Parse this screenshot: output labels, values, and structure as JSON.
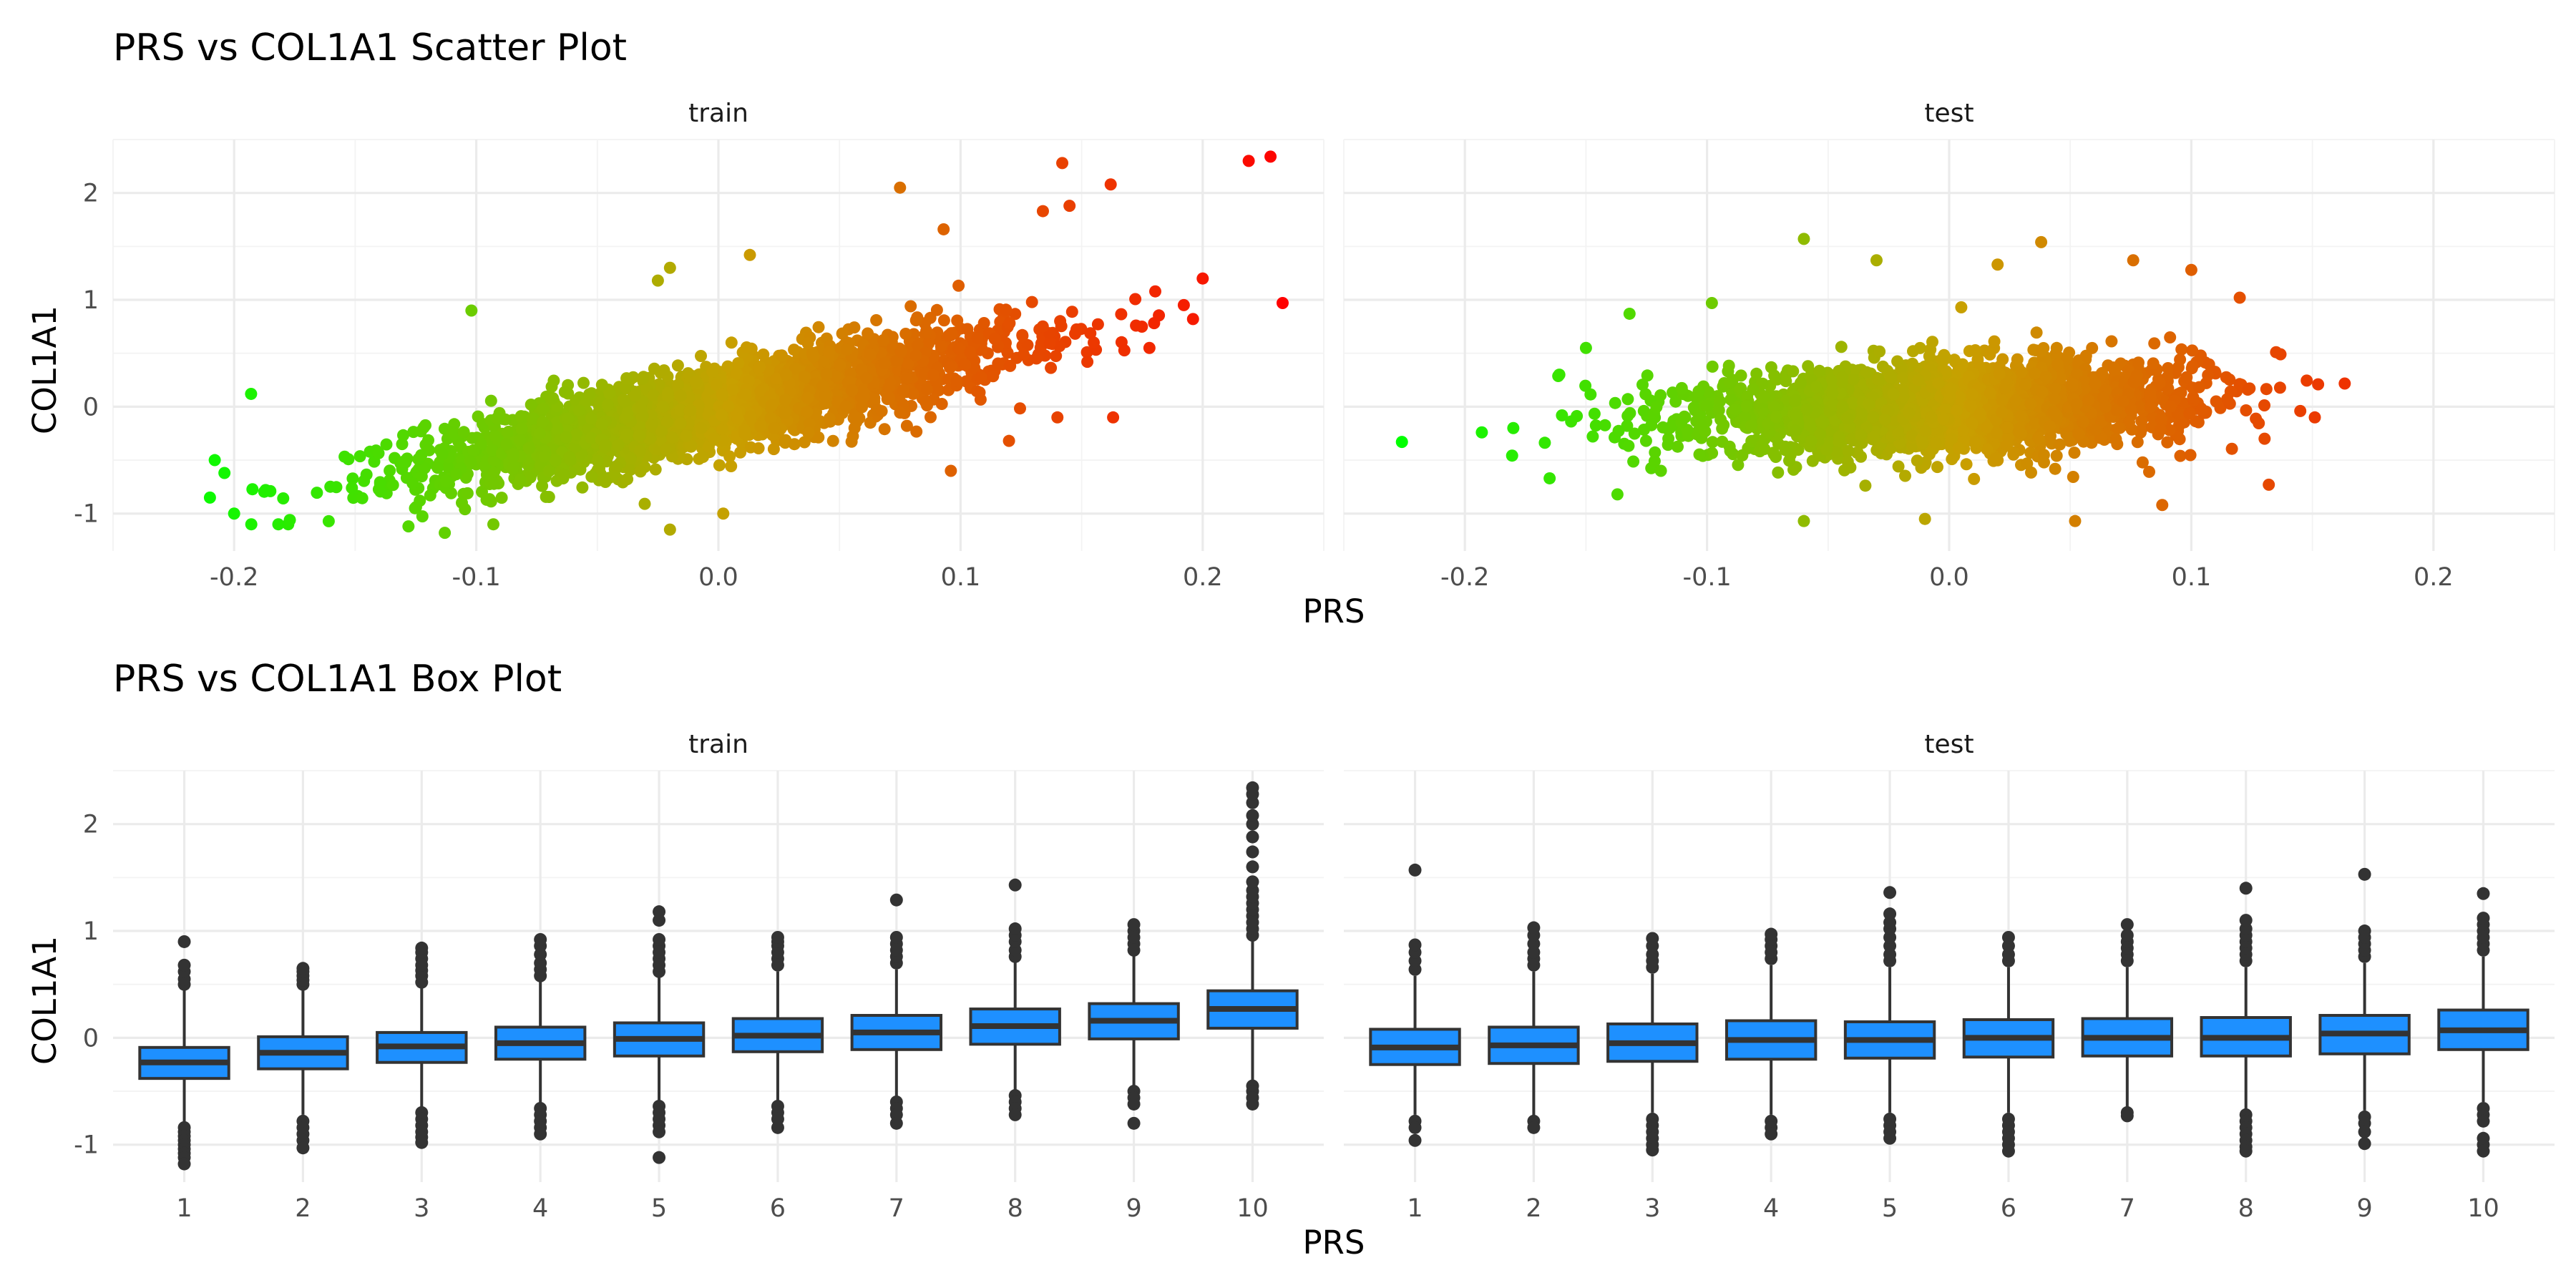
{
  "chart_data": [
    {
      "type": "scatter",
      "title": "PRS vs COL1A1 Scatter Plot",
      "xlabel": "PRS",
      "ylabel": "COL1A1",
      "facets": [
        "train",
        "test"
      ],
      "xlim": [
        -0.25,
        0.25
      ],
      "ylim": [
        -1.35,
        2.5
      ],
      "x_ticks": [
        -0.2,
        -0.1,
        0.0,
        0.1,
        0.2
      ],
      "x_tick_labels": [
        "-0.2",
        "-0.1",
        "0.0",
        "0.1",
        "0.2"
      ],
      "y_ticks": [
        -1,
        0,
        1,
        2
      ],
      "y_tick_labels": [
        "-1",
        "0",
        "1",
        "2"
      ],
      "grid": true,
      "color_scale": {
        "low": "#00ff00",
        "mid": "#c8a000",
        "high": "#ff0000",
        "mapped_to": "PRS"
      },
      "cloud_trend": {
        "train": {
          "x_mean": 0.0,
          "x_sd": 0.06,
          "slope": 4.5,
          "intercept": 0.0,
          "y_sd": 0.2
        },
        "test": {
          "x_mean": 0.0,
          "x_sd": 0.05,
          "slope": 0.9,
          "intercept": 0.0,
          "y_sd": 0.2
        }
      },
      "series": [
        {
          "facet": "train",
          "points": [
            {
              "x": 0.219,
              "y": 2.3
            },
            {
              "x": 0.228,
              "y": 2.34
            },
            {
              "x": 0.233,
              "y": 0.97
            },
            {
              "x": 0.142,
              "y": 2.28
            },
            {
              "x": 0.162,
              "y": 2.08
            },
            {
              "x": 0.075,
              "y": 2.05
            },
            {
              "x": 0.093,
              "y": 1.66
            },
            {
              "x": 0.134,
              "y": 1.83
            },
            {
              "x": 0.196,
              "y": 0.82
            },
            {
              "x": 0.178,
              "y": 0.55
            },
            {
              "x": 0.145,
              "y": 1.88
            },
            {
              "x": -0.208,
              "y": -0.5
            },
            {
              "x": -0.204,
              "y": -0.62
            },
            {
              "x": -0.2,
              "y": -1.0
            },
            {
              "x": -0.193,
              "y": 0.12
            },
            {
              "x": -0.187,
              "y": -0.78
            },
            {
              "x": -0.177,
              "y": -1.06
            },
            {
              "x": -0.113,
              "y": -1.18
            },
            {
              "x": -0.128,
              "y": -1.12
            },
            {
              "x": -0.02,
              "y": -1.15
            },
            {
              "x": -0.102,
              "y": 0.9
            },
            {
              "x": -0.02,
              "y": 1.3
            },
            {
              "x": 0.013,
              "y": 1.42
            },
            {
              "x": -0.025,
              "y": 1.18
            },
            {
              "x": 0.002,
              "y": -1.0
            },
            {
              "x": 0.096,
              "y": -0.6
            },
            {
              "x": 0.12,
              "y": -0.32
            },
            {
              "x": 0.14,
              "y": -0.1
            },
            {
              "x": 0.155,
              "y": 0.6
            },
            {
              "x": 0.163,
              "y": -0.1
            }
          ]
        },
        {
          "facet": "test",
          "points": [
            {
              "x": -0.226,
              "y": -0.33
            },
            {
              "x": -0.193,
              "y": -0.24
            },
            {
              "x": -0.18,
              "y": -0.2
            },
            {
              "x": -0.165,
              "y": -0.67
            },
            {
              "x": -0.161,
              "y": 0.3
            },
            {
              "x": -0.15,
              "y": 0.55
            },
            {
              "x": -0.132,
              "y": 0.87
            },
            {
              "x": -0.06,
              "y": 1.57
            },
            {
              "x": -0.03,
              "y": 1.37
            },
            {
              "x": 0.02,
              "y": 1.33
            },
            {
              "x": 0.038,
              "y": 1.54
            },
            {
              "x": 0.076,
              "y": 1.37
            },
            {
              "x": 0.1,
              "y": 1.28
            },
            {
              "x": 0.12,
              "y": 1.02
            },
            {
              "x": 0.135,
              "y": 0.51
            },
            {
              "x": 0.145,
              "y": -0.04
            },
            {
              "x": 0.151,
              "y": -0.1
            },
            {
              "x": 0.132,
              "y": -0.73
            },
            {
              "x": 0.088,
              "y": -0.92
            },
            {
              "x": 0.052,
              "y": -1.07
            },
            {
              "x": -0.06,
              "y": -1.07
            },
            {
              "x": -0.01,
              "y": -1.05
            },
            {
              "x": -0.137,
              "y": -0.82
            },
            {
              "x": 0.005,
              "y": 0.93
            },
            {
              "x": -0.098,
              "y": 0.97
            }
          ]
        }
      ]
    },
    {
      "type": "box",
      "title": "PRS vs COL1A1 Box Plot",
      "xlabel": "PRS",
      "ylabel": "COL1A1",
      "facets": [
        "train",
        "test"
      ],
      "categories": [
        "1",
        "2",
        "3",
        "4",
        "5",
        "6",
        "7",
        "8",
        "9",
        "10"
      ],
      "ylim": [
        -1.35,
        2.5
      ],
      "y_ticks": [
        -1,
        0,
        1,
        2
      ],
      "y_tick_labels": [
        "-1",
        "0",
        "1",
        "2"
      ],
      "grid": true,
      "box_color": "#1e90ff",
      "outline_color": "#333333",
      "series": [
        {
          "facet": "train",
          "boxes": [
            {
              "category": "1",
              "whisker_low": -0.79,
              "q1": -0.38,
              "median": -0.23,
              "q3": -0.09,
              "whisker_high": 0.45,
              "outliers": [
                -0.84,
                -0.88,
                -0.92,
                -0.96,
                -1.0,
                -1.04,
                -1.08,
                -1.12,
                -1.18,
                0.5,
                0.55,
                0.62,
                0.68,
                0.9
              ]
            },
            {
              "category": "2",
              "whisker_low": -0.72,
              "q1": -0.29,
              "median": -0.14,
              "q3": 0.01,
              "whisker_high": 0.46,
              "outliers": [
                -0.78,
                -0.84,
                -0.9,
                -0.96,
                -1.03,
                0.5,
                0.54,
                0.58,
                0.62,
                0.65
              ]
            },
            {
              "category": "3",
              "whisker_low": -0.66,
              "q1": -0.23,
              "median": -0.08,
              "q3": 0.05,
              "whisker_high": 0.47,
              "outliers": [
                -0.7,
                -0.76,
                -0.82,
                -0.88,
                -0.93,
                -0.98,
                0.52,
                0.58,
                0.63,
                0.68,
                0.74,
                0.8,
                0.84
              ]
            },
            {
              "category": "4",
              "whisker_low": -0.62,
              "q1": -0.2,
              "median": -0.05,
              "q3": 0.1,
              "whisker_high": 0.53,
              "outliers": [
                -0.66,
                -0.72,
                -0.78,
                -0.84,
                -0.9,
                0.58,
                0.64,
                0.7,
                0.78,
                0.86,
                0.92
              ]
            },
            {
              "category": "5",
              "whisker_low": -0.6,
              "q1": -0.17,
              "median": -0.01,
              "q3": 0.14,
              "whisker_high": 0.58,
              "outliers": [
                -0.64,
                -0.7,
                -0.76,
                -0.82,
                -0.88,
                -1.12,
                0.62,
                0.68,
                0.74,
                0.8,
                0.86,
                0.92,
                1.1,
                1.18
              ]
            },
            {
              "category": "6",
              "whisker_low": -0.6,
              "q1": -0.13,
              "median": 0.02,
              "q3": 0.18,
              "whisker_high": 0.62,
              "outliers": [
                -0.64,
                -0.7,
                -0.76,
                -0.84,
                0.68,
                0.74,
                0.8,
                0.86,
                0.9,
                0.94
              ]
            },
            {
              "category": "7",
              "whisker_low": -0.55,
              "q1": -0.11,
              "median": 0.05,
              "q3": 0.21,
              "whisker_high": 0.64,
              "outliers": [
                -0.6,
                -0.66,
                -0.72,
                -0.8,
                0.7,
                0.76,
                0.82,
                0.88,
                0.94,
                1.29
              ]
            },
            {
              "category": "8",
              "whisker_low": -0.49,
              "q1": -0.06,
              "median": 0.11,
              "q3": 0.27,
              "whisker_high": 0.71,
              "outliers": [
                -0.54,
                -0.6,
                -0.66,
                -0.72,
                0.76,
                0.82,
                0.9,
                0.96,
                1.02,
                1.43
              ]
            },
            {
              "category": "9",
              "whisker_low": -0.45,
              "q1": -0.01,
              "median": 0.16,
              "q3": 0.32,
              "whisker_high": 0.77,
              "outliers": [
                -0.5,
                -0.56,
                -0.62,
                -0.8,
                0.82,
                0.88,
                0.94,
                1.0,
                1.06
              ]
            },
            {
              "category": "10",
              "whisker_low": -0.4,
              "q1": 0.09,
              "median": 0.27,
              "q3": 0.44,
              "whisker_high": 0.91,
              "outliers": [
                -0.45,
                -0.5,
                -0.56,
                -0.62,
                0.96,
                1.02,
                1.08,
                1.14,
                1.2,
                1.26,
                1.32,
                1.38,
                1.46,
                1.6,
                1.74,
                1.88,
                2.0,
                2.08,
                2.2,
                2.28,
                2.34
              ]
            }
          ]
        },
        {
          "facet": "test",
          "boxes": [
            {
              "category": "1",
              "whisker_low": -0.72,
              "q1": -0.25,
              "median": -0.09,
              "q3": 0.08,
              "whisker_high": 0.58,
              "outliers": [
                -0.78,
                -0.84,
                -0.96,
                0.64,
                0.72,
                0.8,
                0.87,
                1.57
              ]
            },
            {
              "category": "2",
              "whisker_low": -0.73,
              "q1": -0.24,
              "median": -0.07,
              "q3": 0.1,
              "whisker_high": 0.62,
              "outliers": [
                -0.78,
                -0.84,
                0.68,
                0.74,
                0.8,
                0.88,
                0.96,
                1.03
              ]
            },
            {
              "category": "3",
              "whisker_low": -0.7,
              "q1": -0.22,
              "median": -0.05,
              "q3": 0.13,
              "whisker_high": 0.6,
              "outliers": [
                -0.76,
                -0.82,
                -0.88,
                -0.94,
                -1.0,
                -1.05,
                0.66,
                0.72,
                0.78,
                0.86,
                0.93
              ]
            },
            {
              "category": "4",
              "whisker_low": -0.72,
              "q1": -0.2,
              "median": -0.02,
              "q3": 0.16,
              "whisker_high": 0.68,
              "outliers": [
                -0.78,
                -0.84,
                -0.9,
                0.74,
                0.8,
                0.86,
                0.92,
                0.97
              ]
            },
            {
              "category": "5",
              "whisker_low": -0.7,
              "q1": -0.19,
              "median": -0.02,
              "q3": 0.15,
              "whisker_high": 0.66,
              "outliers": [
                -0.76,
                -0.82,
                -0.88,
                -0.94,
                0.72,
                0.78,
                0.86,
                0.94,
                1.02,
                1.08,
                1.16,
                1.36
              ]
            },
            {
              "category": "6",
              "whisker_low": -0.7,
              "q1": -0.18,
              "median": 0.0,
              "q3": 0.17,
              "whisker_high": 0.66,
              "outliers": [
                -0.76,
                -0.82,
                -0.88,
                -0.94,
                -1.0,
                -1.06,
                0.72,
                0.78,
                0.86,
                0.94
              ]
            },
            {
              "category": "7",
              "whisker_low": -0.68,
              "q1": -0.17,
              "median": 0.0,
              "q3": 0.18,
              "whisker_high": 0.66,
              "outliers": [
                -0.7,
                -0.73,
                0.72,
                0.78,
                0.84,
                0.9,
                0.96,
                1.06
              ]
            },
            {
              "category": "8",
              "whisker_low": -0.68,
              "q1": -0.17,
              "median": 0.0,
              "q3": 0.19,
              "whisker_high": 0.66,
              "outliers": [
                -0.72,
                -0.78,
                -0.84,
                -0.9,
                -0.96,
                -1.02,
                -1.06,
                0.72,
                0.78,
                0.84,
                0.9,
                0.96,
                1.02,
                1.1,
                1.4
              ]
            },
            {
              "category": "9",
              "whisker_low": -0.68,
              "q1": -0.15,
              "median": 0.04,
              "q3": 0.21,
              "whisker_high": 0.7,
              "outliers": [
                -0.74,
                -0.8,
                -0.88,
                -0.99,
                0.76,
                0.82,
                0.88,
                0.94,
                1.0,
                1.53
              ]
            },
            {
              "category": "10",
              "whisker_low": -0.6,
              "q1": -0.11,
              "median": 0.07,
              "q3": 0.26,
              "whisker_high": 0.76,
              "outliers": [
                -0.66,
                -0.72,
                -0.78,
                -0.94,
                -1.0,
                -1.06,
                0.82,
                0.88,
                0.94,
                1.0,
                1.06,
                1.12,
                1.35
              ]
            }
          ]
        }
      ]
    }
  ]
}
